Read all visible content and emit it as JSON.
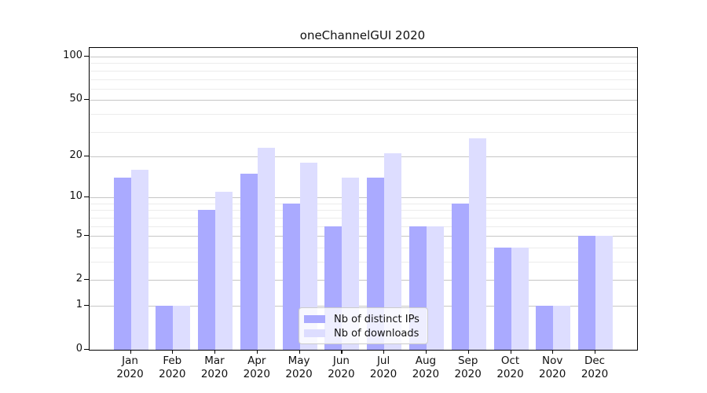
{
  "chart_data": {
    "type": "bar",
    "title": "oneChannelGUI 2020",
    "categories": [
      "Jan 2020",
      "Feb 2020",
      "Mar 2020",
      "Apr 2020",
      "May 2020",
      "Jun 2020",
      "Jul 2020",
      "Aug 2020",
      "Sep 2020",
      "Oct 2020",
      "Nov 2020",
      "Dec 2020"
    ],
    "x_tick_months": [
      "Jan",
      "Feb",
      "Mar",
      "Apr",
      "May",
      "Jun",
      "Jul",
      "Aug",
      "Sep",
      "Oct",
      "Nov",
      "Dec"
    ],
    "x_tick_year": "2020",
    "series": [
      {
        "name": "Nb of distinct IPs",
        "color": "#aaaaff",
        "values": [
          14,
          1,
          8,
          15,
          9,
          6,
          14,
          6,
          9,
          4,
          1,
          5
        ]
      },
      {
        "name": "Nb of downloads",
        "color": "#ddddff",
        "values": [
          16,
          1,
          11,
          23,
          18,
          14,
          21,
          6,
          27,
          4,
          1,
          5
        ]
      }
    ],
    "y_axis": {
      "scale": "log10(value+1)",
      "major_ticks": [
        0,
        1,
        2,
        5,
        10,
        20,
        50,
        100
      ],
      "minor_gridlines": [
        3,
        4,
        6,
        7,
        8,
        9,
        30,
        40,
        60,
        70,
        80,
        90
      ],
      "top_value_displayed": 114
    },
    "grid": true,
    "legend": {
      "position": "lower-center",
      "entries": [
        "Nb of distinct IPs",
        "Nb of downloads"
      ]
    },
    "colors": {
      "bar_distinct_ips": "#aaaaff",
      "bar_downloads": "#ddddff",
      "grid_major": "#c6c6c6",
      "grid_minor": "#ececec",
      "spine": "#000000",
      "background": "#ffffff"
    }
  }
}
